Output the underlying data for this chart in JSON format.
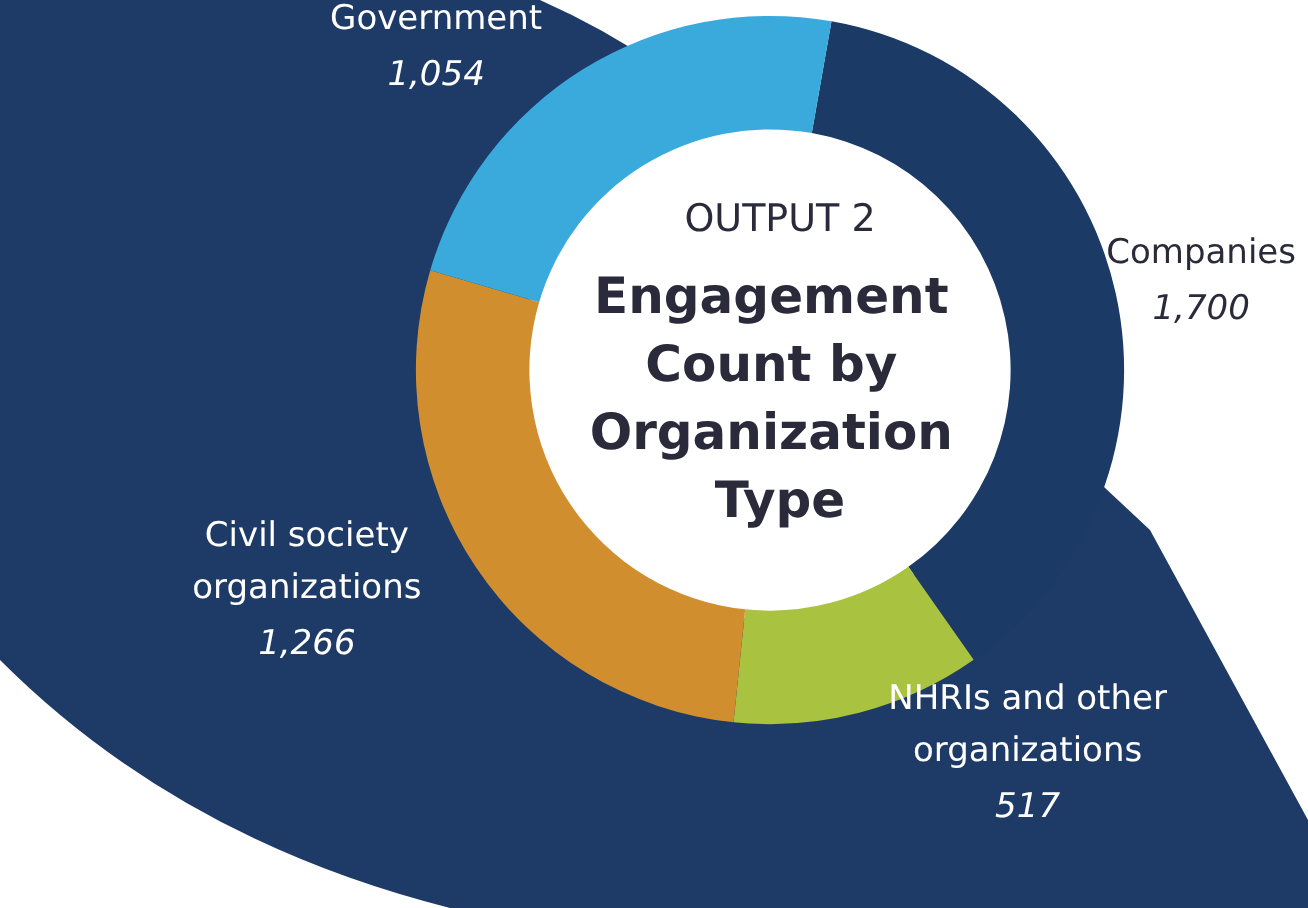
{
  "chart_data": {
    "type": "donut",
    "subtitle": "OUTPUT 2",
    "title": "Engagement Count by Organization Type",
    "categories": [
      "Companies",
      "NHRIs and other organizations",
      "Civil society organizations",
      "Government"
    ],
    "values": [
      1700,
      517,
      1266,
      1054
    ],
    "colors": [
      "#1b3a66",
      "#a9c23f",
      "#d08e2f",
      "#3aa9dc"
    ],
    "value_labels": [
      "1,700",
      "517",
      "1,266",
      "1,054"
    ],
    "legend": false
  }
}
